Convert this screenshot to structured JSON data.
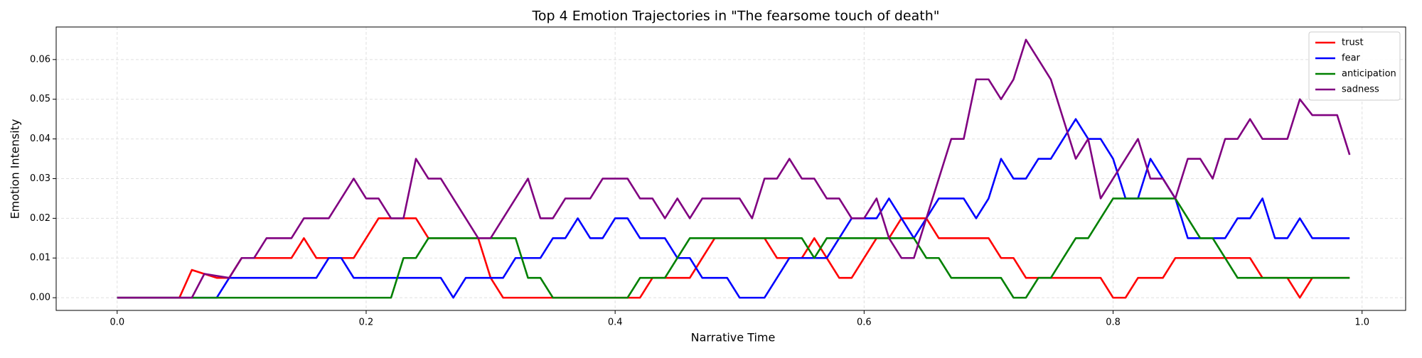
{
  "chart_data": {
    "type": "line",
    "title": "Top 4 Emotion Trajectories in \"The fearsome touch of death\"",
    "x_label": "Narrative Time",
    "y_label": "Emotion Intensity",
    "x": [
      0,
      0.01,
      0.02,
      0.03,
      0.04,
      0.05,
      0.06,
      0.07,
      0.08,
      0.09,
      0.1,
      0.11,
      0.12,
      0.13,
      0.14,
      0.15,
      0.16,
      0.17,
      0.18,
      0.19,
      0.2,
      0.21,
      0.22,
      0.23,
      0.24,
      0.25,
      0.26,
      0.27,
      0.28,
      0.29,
      0.3,
      0.31,
      0.32,
      0.33,
      0.34,
      0.35,
      0.36,
      0.37,
      0.38,
      0.39,
      0.4,
      0.41,
      0.42,
      0.43,
      0.44,
      0.45,
      0.46,
      0.47,
      0.48,
      0.49,
      0.5,
      0.51,
      0.52,
      0.53,
      0.54,
      0.55,
      0.56,
      0.57,
      0.58,
      0.59,
      0.6,
      0.61,
      0.62,
      0.63,
      0.64,
      0.65,
      0.66,
      0.67,
      0.68,
      0.69,
      0.7,
      0.71,
      0.72,
      0.73,
      0.74,
      0.75,
      0.76,
      0.77,
      0.78,
      0.79,
      0.8,
      0.81,
      0.82,
      0.83,
      0.84,
      0.85,
      0.86,
      0.87,
      0.88,
      0.89,
      0.9,
      0.91,
      0.92,
      0.93,
      0.94,
      0.95,
      0.96,
      0.97,
      0.98,
      0.99
    ],
    "series": [
      {
        "name": "trust",
        "color": "#ff0000",
        "values": [
          0,
          0,
          0,
          0,
          0,
          0,
          0.007,
          0.006,
          0.005,
          0.005,
          0.01,
          0.01,
          0.01,
          0.01,
          0.01,
          0.015,
          0.01,
          0.01,
          0.01,
          0.01,
          0.015,
          0.02,
          0.02,
          0.02,
          0.02,
          0.015,
          0.015,
          0.015,
          0.015,
          0.015,
          0.005,
          0,
          0,
          0,
          0,
          0,
          0,
          0,
          0,
          0,
          0,
          0,
          0,
          0.005,
          0.005,
          0.005,
          0.005,
          0.01,
          0.015,
          0.015,
          0.015,
          0.015,
          0.015,
          0.01,
          0.01,
          0.01,
          0.015,
          0.01,
          0.005,
          0.005,
          0.01,
          0.015,
          0.015,
          0.02,
          0.02,
          0.02,
          0.015,
          0.015,
          0.015,
          0.015,
          0.015,
          0.01,
          0.01,
          0.005,
          0.005,
          0.005,
          0.005,
          0.005,
          0.005,
          0.005,
          0,
          0,
          0.005,
          0.005,
          0.005,
          0.01,
          0.01,
          0.01,
          0.01,
          0.01,
          0.01,
          0.01,
          0.005,
          0.005,
          0.005,
          0,
          0.005,
          0.005,
          0.005,
          0.005
        ]
      },
      {
        "name": "fear",
        "color": "#0000ff",
        "values": [
          0,
          0,
          0,
          0,
          0,
          0,
          0,
          0,
          0,
          0.005,
          0.005,
          0.005,
          0.005,
          0.005,
          0.005,
          0.005,
          0.005,
          0.01,
          0.01,
          0.005,
          0.005,
          0.005,
          0.005,
          0.005,
          0.005,
          0.005,
          0.005,
          0,
          0.005,
          0.005,
          0.005,
          0.005,
          0.01,
          0.01,
          0.01,
          0.015,
          0.015,
          0.02,
          0.015,
          0.015,
          0.02,
          0.02,
          0.015,
          0.015,
          0.015,
          0.01,
          0.01,
          0.005,
          0.005,
          0.005,
          0,
          0,
          0,
          0.005,
          0.01,
          0.01,
          0.01,
          0.01,
          0.015,
          0.02,
          0.02,
          0.02,
          0.025,
          0.02,
          0.015,
          0.02,
          0.025,
          0.025,
          0.025,
          0.02,
          0.025,
          0.035,
          0.03,
          0.03,
          0.035,
          0.035,
          0.04,
          0.045,
          0.04,
          0.04,
          0.035,
          0.025,
          0.025,
          0.035,
          0.03,
          0.025,
          0.015,
          0.015,
          0.015,
          0.015,
          0.02,
          0.02,
          0.025,
          0.015,
          0.015,
          0.02,
          0.015,
          0.015,
          0.015,
          0.015
        ]
      },
      {
        "name": "anticipation",
        "color": "#008000",
        "values": [
          0,
          0,
          0,
          0,
          0,
          0,
          0,
          0,
          0,
          0,
          0,
          0,
          0,
          0,
          0,
          0,
          0,
          0,
          0,
          0,
          0,
          0,
          0,
          0.01,
          0.01,
          0.015,
          0.015,
          0.015,
          0.015,
          0.015,
          0.015,
          0.015,
          0.015,
          0.005,
          0.005,
          0,
          0,
          0,
          0,
          0,
          0,
          0,
          0.005,
          0.005,
          0.005,
          0.01,
          0.015,
          0.015,
          0.015,
          0.015,
          0.015,
          0.015,
          0.015,
          0.015,
          0.015,
          0.015,
          0.01,
          0.015,
          0.015,
          0.015,
          0.015,
          0.015,
          0.015,
          0.015,
          0.015,
          0.01,
          0.01,
          0.005,
          0.005,
          0.005,
          0.005,
          0.005,
          0,
          0,
          0.005,
          0.005,
          0.01,
          0.015,
          0.015,
          0.02,
          0.025,
          0.025,
          0.025,
          0.025,
          0.025,
          0.025,
          0.02,
          0.015,
          0.015,
          0.01,
          0.005,
          0.005,
          0.005,
          0.005,
          0.005,
          0.005,
          0.005,
          0.005,
          0.005,
          0.005
        ]
      },
      {
        "name": "sadness",
        "color": "#800080",
        "values": [
          0,
          0,
          0,
          0,
          0,
          0,
          0,
          0.006,
          0.0055,
          0.005,
          0.01,
          0.01,
          0.015,
          0.015,
          0.015,
          0.02,
          0.02,
          0.02,
          0.025,
          0.03,
          0.025,
          0.025,
          0.02,
          0.02,
          0.035,
          0.03,
          0.03,
          0.025,
          0.02,
          0.015,
          0.015,
          0.02,
          0.025,
          0.03,
          0.02,
          0.02,
          0.025,
          0.025,
          0.025,
          0.03,
          0.03,
          0.03,
          0.025,
          0.025,
          0.02,
          0.025,
          0.02,
          0.025,
          0.025,
          0.025,
          0.025,
          0.02,
          0.03,
          0.03,
          0.035,
          0.03,
          0.03,
          0.025,
          0.025,
          0.02,
          0.02,
          0.025,
          0.015,
          0.01,
          0.01,
          0.02,
          0.03,
          0.04,
          0.04,
          0.055,
          0.055,
          0.05,
          0.055,
          0.065,
          0.06,
          0.055,
          0.045,
          0.035,
          0.04,
          0.025,
          0.03,
          0.035,
          0.04,
          0.03,
          0.03,
          0.025,
          0.035,
          0.035,
          0.03,
          0.04,
          0.04,
          0.045,
          0.04,
          0.04,
          0.04,
          0.05,
          0.046,
          0.046,
          0.046,
          0.036
        ]
      }
    ],
    "xlim": [
      -0.049,
      1.035
    ],
    "ylim": [
      -0.0032,
      0.0682
    ],
    "xticks": [
      {
        "value": 0,
        "label": "0.0"
      },
      0.2,
      0.4,
      0.6,
      0.8,
      {
        "value": 1,
        "label": "1.0"
      }
    ],
    "yticks": [
      {
        "value": 0,
        "label": "0.00"
      },
      {
        "value": 0.01,
        "label": "0.01"
      },
      {
        "value": 0.02,
        "label": "0.02"
      },
      {
        "value": 0.03,
        "label": "0.03"
      },
      {
        "value": 0.04,
        "label": "0.04"
      },
      {
        "value": 0.05,
        "label": "0.05"
      },
      {
        "value": 0.06,
        "label": "0.06"
      }
    ],
    "grid": true,
    "legend": "upper right"
  }
}
